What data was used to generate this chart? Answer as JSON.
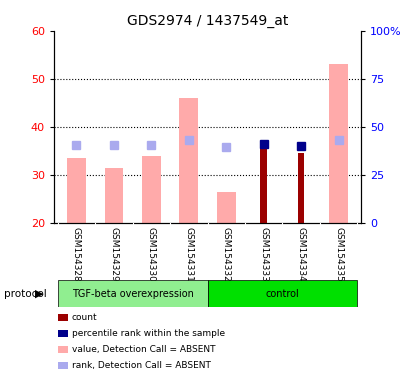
{
  "title": "GDS2974 / 1437549_at",
  "samples": [
    "GSM154328",
    "GSM154329",
    "GSM154330",
    "GSM154331",
    "GSM154332",
    "GSM154333",
    "GSM154334",
    "GSM154335"
  ],
  "value_absent": [
    33.5,
    31.5,
    34.0,
    46.0,
    26.5,
    null,
    null,
    53.0
  ],
  "rank_absent": [
    40.5,
    40.5,
    40.5,
    43.0,
    39.5,
    null,
    null,
    43.0
  ],
  "count": [
    null,
    null,
    null,
    null,
    null,
    36.0,
    34.5,
    null
  ],
  "percentile_rank": [
    null,
    null,
    null,
    null,
    null,
    41.0,
    40.0,
    null
  ],
  "ylim_left": [
    20,
    60
  ],
  "ylim_right": [
    0,
    100
  ],
  "yticks_left": [
    20,
    30,
    40,
    50,
    60
  ],
  "yticks_right": [
    0,
    25,
    50,
    75,
    100
  ],
  "yticklabels_right": [
    "0",
    "25",
    "50",
    "75",
    "100%"
  ],
  "color_count": "#9b0000",
  "color_percentile": "#00008b",
  "color_value_absent": "#ffaaaa",
  "color_rank_absent": "#aaaaee",
  "color_tgf": "#90ee90",
  "color_ctrl": "#00e000",
  "legend_items": [
    {
      "label": "count",
      "color": "#9b0000"
    },
    {
      "label": "percentile rank within the sample",
      "color": "#00008b"
    },
    {
      "label": "value, Detection Call = ABSENT",
      "color": "#ffaaaa"
    },
    {
      "label": "rank, Detection Call = ABSENT",
      "color": "#aaaaee"
    }
  ],
  "bar_width": 0.5,
  "marker_size": 6
}
